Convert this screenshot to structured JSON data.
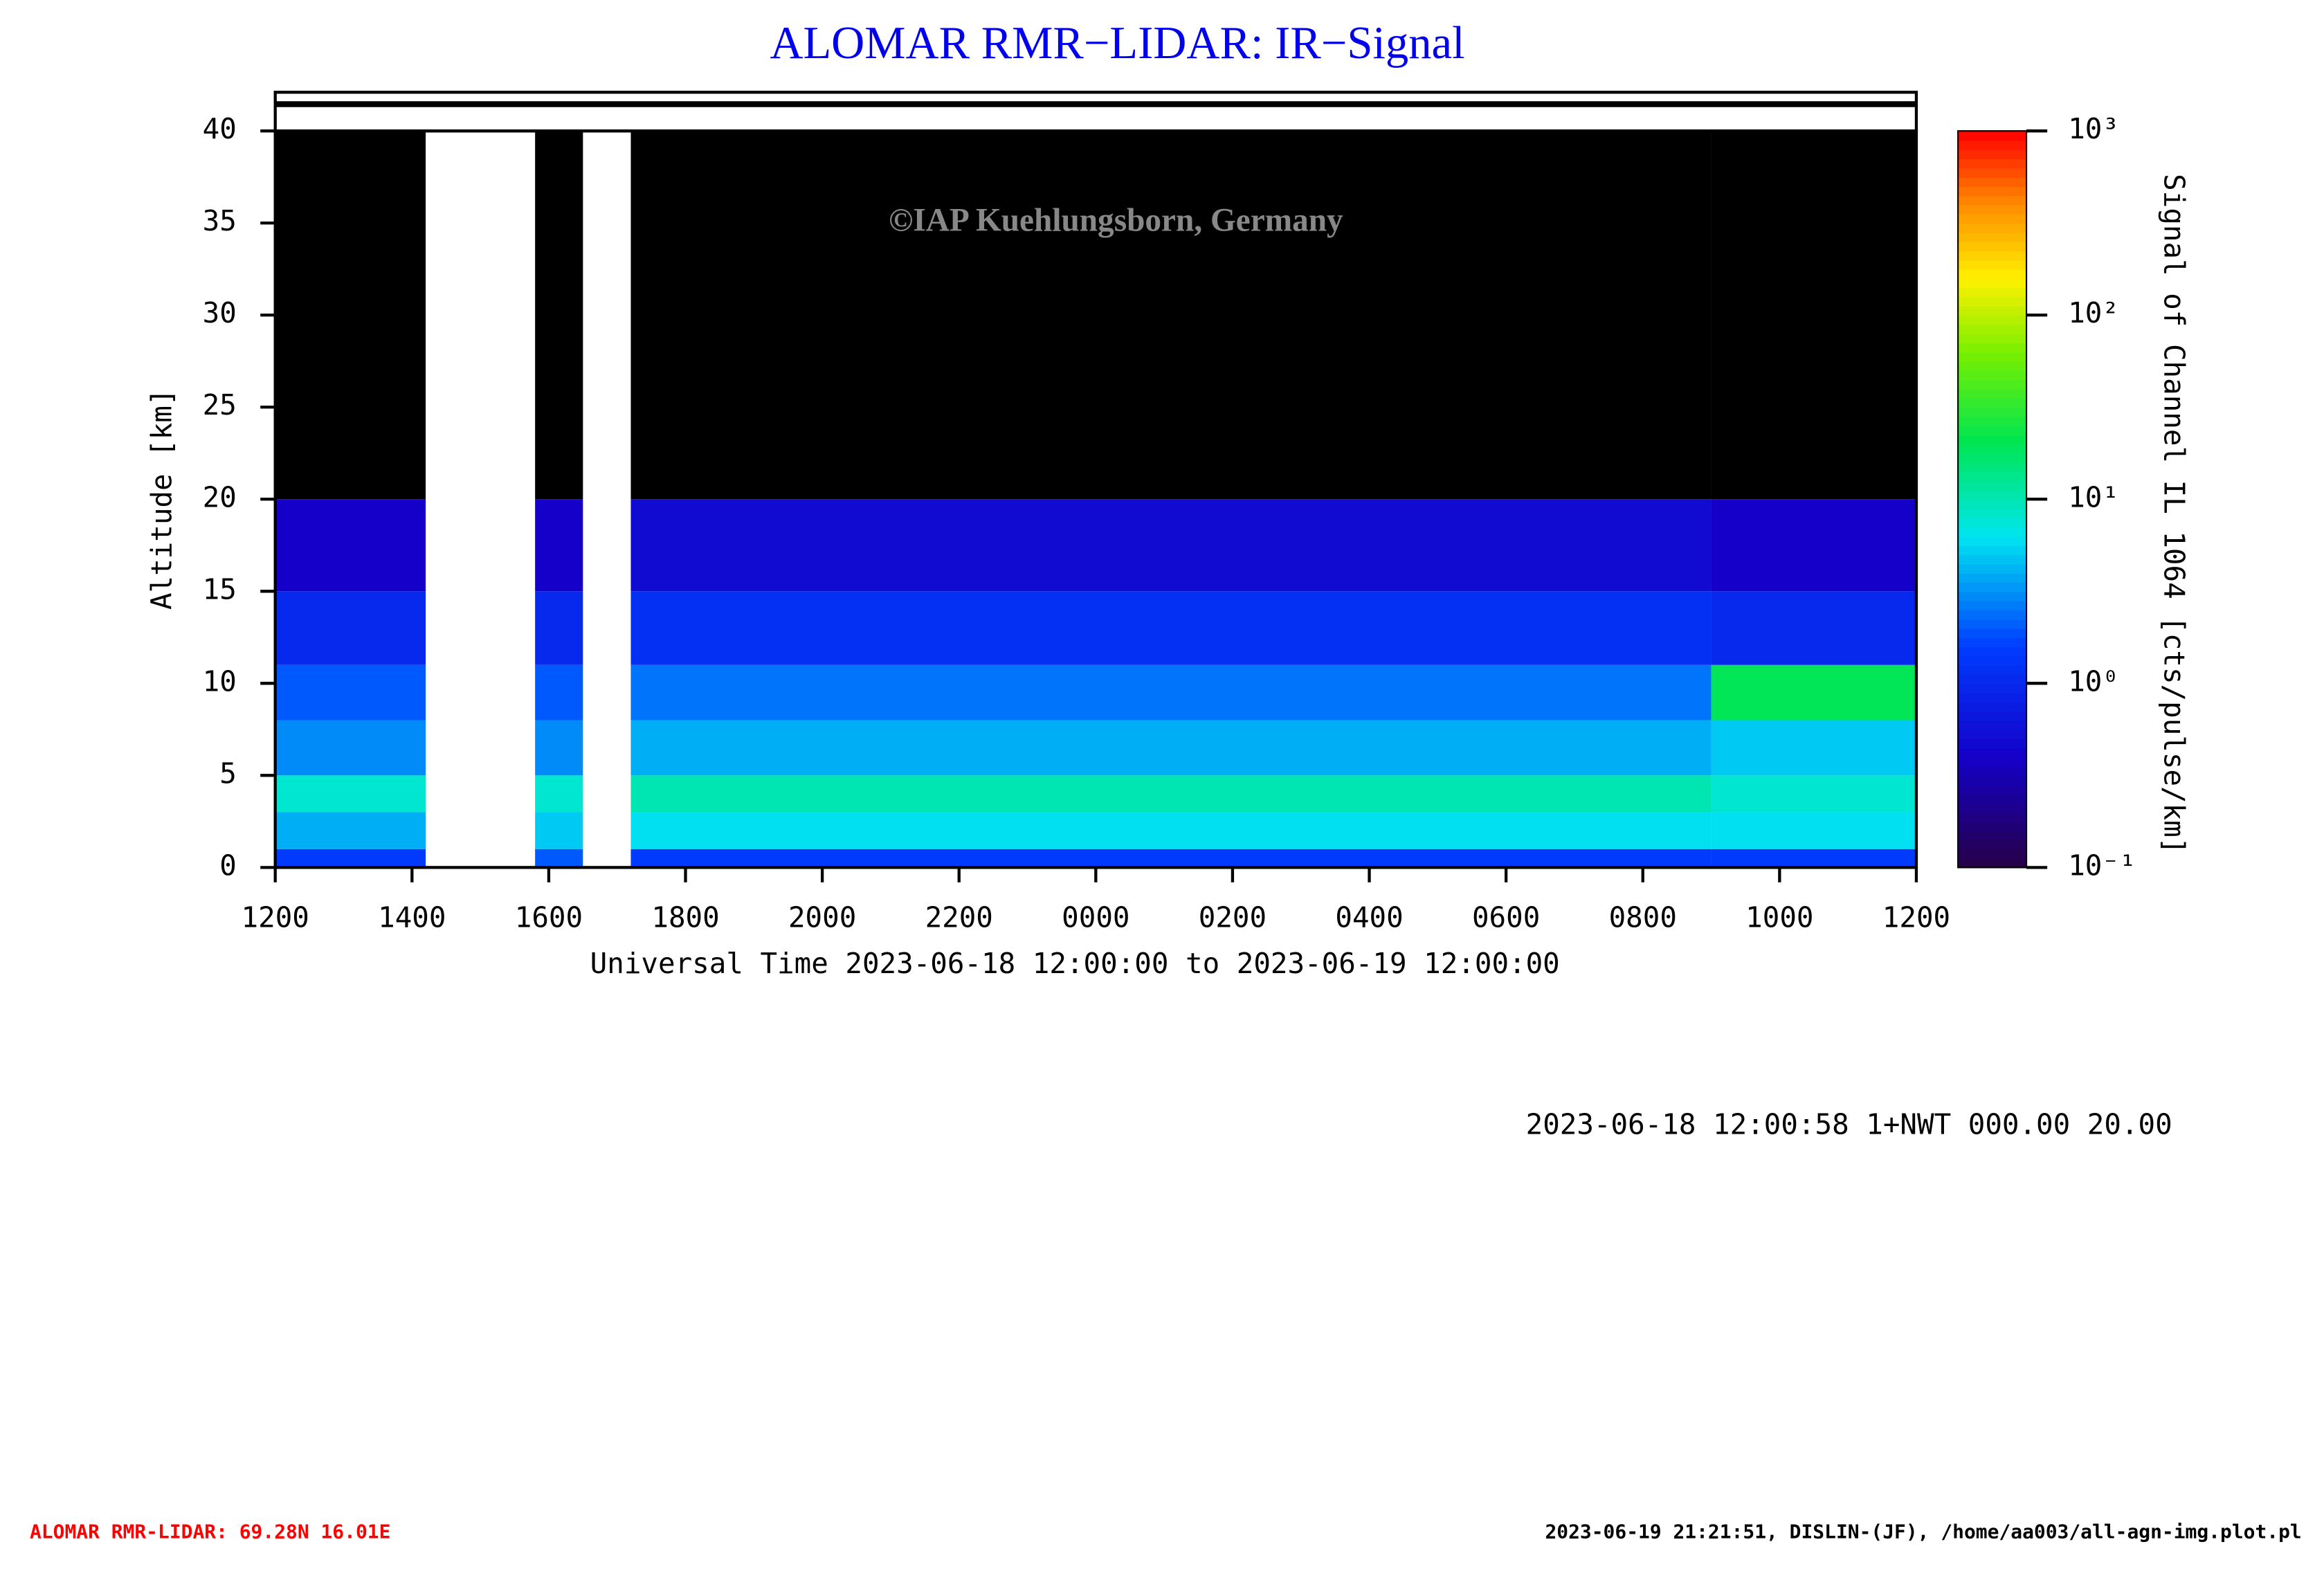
{
  "chart_data": {
    "type": "heatmap",
    "title": "ALOMAR RMR−LIDAR: IR−Signal",
    "watermark": "©IAP Kuehlungsborn, Germany",
    "y_label": "Altitude [km]",
    "x_label": "Universal Time 2023-06-18 12:00:00 to 2023-06-19 12:00:00",
    "colorbar_label": "Signal of Channel IL 1064 [cts/pulse/km]",
    "info": "2023-06-18 12:00:58 1+NWT 000.00 20.00",
    "footer_left": "ALOMAR RMR-LIDAR: 69.28N 16.01E",
    "footer_right": "2023-06-19 21:21:51, DISLIN-(JF), /home/aa003/all-agn-img.plot.pl",
    "xlim": [
      0,
      24
    ],
    "xticks": [
      {
        "value": 0,
        "label": "1200"
      },
      {
        "value": 2,
        "label": "1400"
      },
      {
        "value": 4,
        "label": "1600"
      },
      {
        "value": 6,
        "label": "1800"
      },
      {
        "value": 8,
        "label": "2000"
      },
      {
        "value": 10,
        "label": "2200"
      },
      {
        "value": 12,
        "label": "0000"
      },
      {
        "value": 14,
        "label": "0200"
      },
      {
        "value": 16,
        "label": "0400"
      },
      {
        "value": 18,
        "label": "0600"
      },
      {
        "value": 20,
        "label": "0800"
      },
      {
        "value": 22,
        "label": "1000"
      },
      {
        "value": 24,
        "label": "1200"
      }
    ],
    "ylim": [
      0,
      40
    ],
    "yticks": [
      0,
      5,
      10,
      15,
      20,
      25,
      30,
      35,
      40
    ],
    "clim": [
      0.1,
      1000
    ],
    "color_scale": "log",
    "cticks": [
      {
        "value": 0.1,
        "label": "10⁻¹"
      },
      {
        "value": 1,
        "label": "10⁰"
      },
      {
        "value": 10,
        "label": "10¹"
      },
      {
        "value": 100,
        "label": "10²"
      },
      {
        "value": 1000,
        "label": "10³"
      }
    ],
    "x_bins": [
      0,
      2.2,
      3.8,
      4.5,
      5.2,
      21,
      24
    ],
    "y_bins": [
      0,
      1,
      3,
      5,
      8,
      11,
      15,
      20,
      40
    ],
    "values": [
      [
        1.5,
        null,
        2,
        null,
        1.5,
        1.5
      ],
      [
        4,
        null,
        5,
        null,
        6,
        6
      ],
      [
        8,
        null,
        8,
        null,
        10,
        8
      ],
      [
        3,
        null,
        3,
        null,
        4,
        5
      ],
      [
        2,
        null,
        2,
        null,
        2.5,
        20
      ],
      [
        1,
        null,
        1,
        null,
        1.2,
        1
      ],
      [
        0.4,
        null,
        0.4,
        null,
        0.5,
        0.4
      ],
      [
        0.05,
        null,
        0.05,
        null,
        0.05,
        0.05
      ]
    ]
  }
}
